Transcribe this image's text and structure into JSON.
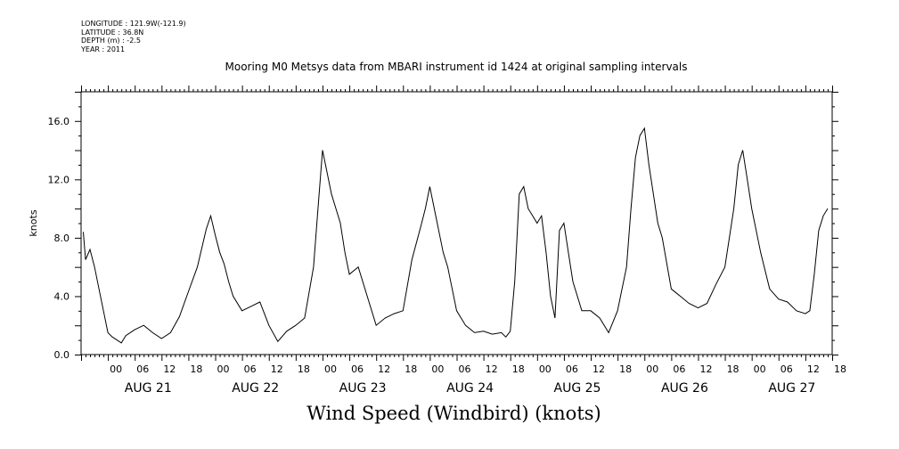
{
  "meta": {
    "longitude": "LONGITUDE : 121.9W(-121.9)",
    "latitude": "LATITUDE : 36.8N",
    "depth": "DEPTH (m) : -2.5",
    "year": "YEAR : 2011"
  },
  "chart_data": {
    "type": "line",
    "title": "Mooring M0 Metsys data from MBARI instrument id 1424 at original sampling intervals",
    "xlabel": "Wind Speed (Windbird) (knots)",
    "ylabel": "knots",
    "ylim": [
      0,
      18
    ],
    "xlim_hours": [
      -6,
      162
    ],
    "y_ticks": [
      "0.0",
      "4.0",
      "8.0",
      "12.0",
      "16.0"
    ],
    "hour_ticks": [
      "00",
      "06",
      "12",
      "18"
    ],
    "day_labels": [
      "AUG 21",
      "AUG 22",
      "AUG 23",
      "AUG 24",
      "AUG 25",
      "AUG 26",
      "AUG 27"
    ],
    "grid": false,
    "series": [
      {
        "x": [
          -5.5,
          -5,
          -4,
          -3,
          -2,
          -1,
          0,
          1,
          2,
          3,
          4,
          6,
          8,
          10,
          12,
          14,
          16,
          18,
          20,
          22,
          23,
          24,
          25,
          26,
          27,
          28,
          30,
          32,
          34,
          36,
          38,
          40,
          42,
          44,
          46,
          47,
          48,
          49,
          50,
          51,
          52,
          53,
          54,
          56,
          58,
          60,
          62,
          64,
          66,
          68,
          70,
          71,
          72,
          73,
          74,
          75,
          76,
          77,
          78,
          79,
          80,
          82,
          84,
          86,
          88,
          89,
          90,
          91,
          92,
          93,
          94,
          95,
          96,
          97,
          98,
          99,
          100,
          101,
          102,
          103,
          104,
          106,
          108,
          110,
          112,
          114,
          116,
          117,
          118,
          119,
          120,
          121,
          122,
          123,
          124,
          126,
          128,
          130,
          132,
          134,
          136,
          138,
          140,
          141,
          142,
          143,
          144,
          145,
          146,
          148,
          150,
          152,
          154,
          156,
          157,
          158,
          159,
          160,
          161
        ],
        "y": [
          8.4,
          6.5,
          7.2,
          6.0,
          4.5,
          3.0,
          1.5,
          1.2,
          1.0,
          0.8,
          1.3,
          1.7,
          2.0,
          1.5,
          1.1,
          1.5,
          2.6,
          4.3,
          6.0,
          8.6,
          9.5,
          8.2,
          7.0,
          6.2,
          5.0,
          4.0,
          3.0,
          3.3,
          3.6,
          2.0,
          0.9,
          1.6,
          2.0,
          2.5,
          6.0,
          10.0,
          14.0,
          12.5,
          11.0,
          10.0,
          9.0,
          7.0,
          5.5,
          6.0,
          4.0,
          2.0,
          2.5,
          2.8,
          3.0,
          6.5,
          8.8,
          10.0,
          11.5,
          10.0,
          8.5,
          7.0,
          6.0,
          4.5,
          3.0,
          2.5,
          2.0,
          1.5,
          1.6,
          1.4,
          1.5,
          1.2,
          1.6,
          5.0,
          11.0,
          11.5,
          10.0,
          9.5,
          9.0,
          9.5,
          7.0,
          4.0,
          2.5,
          8.5,
          9.0,
          7.0,
          5.0,
          3.0,
          3.0,
          2.5,
          1.5,
          3.0,
          6.0,
          10.0,
          13.5,
          15.0,
          15.5,
          13.0,
          11.0,
          9.0,
          8.0,
          4.5,
          4.0,
          3.5,
          3.2,
          3.5,
          4.8,
          6.0,
          10.0,
          13.0,
          14.0,
          12.0,
          10.0,
          8.5,
          7.0,
          4.5,
          3.8,
          3.6,
          3.0,
          2.8,
          3.0,
          5.5,
          8.5,
          9.5,
          10.0
        ]
      }
    ]
  }
}
